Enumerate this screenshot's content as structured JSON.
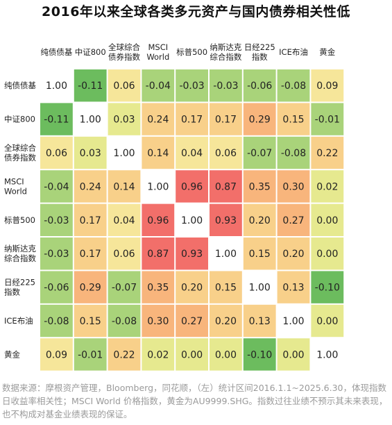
{
  "title": "2016年以来全球各类多元资产与国内债券相关性低",
  "footnote": "数据来源：摩根资产管理，Bloomberg，同花顺，（左）统计区间2016.1.1~2025.6.30，体现指数日收益率相关性；MSCI World 价格指数，黄金为AU9999.SHG。指数过往业绩不预示其未来表现，也不构成对基金业绩表现的保证。",
  "colors": {
    "strong_negative": "#6cbc5e",
    "weak_negative": "#a9d37a",
    "near_zero": "#e6e98f",
    "low_positive": "#f6e69a",
    "moderate_positive": "#f8d08a",
    "medium_positive": "#f8b57c",
    "high_positive": "#f26f6a",
    "diagonal": "#ffffff"
  },
  "chart_data": {
    "type": "heatmap",
    "title": "2016年以来全球各类多元资产与国内债券相关性低",
    "column_labels": [
      [
        "纯债债基"
      ],
      [
        "中证800"
      ],
      [
        "全球综合",
        "债券指数"
      ],
      [
        "MSCI",
        "World"
      ],
      [
        "标普500"
      ],
      [
        "纳斯达克",
        "综合指数"
      ],
      [
        "日经225",
        "指数"
      ],
      [
        "ICE布油"
      ],
      [
        "黄金"
      ]
    ],
    "row_labels": [
      [
        "纯债债基"
      ],
      [
        "中证800"
      ],
      [
        "全球综合",
        "债券指数"
      ],
      [
        "MSCI",
        "World"
      ],
      [
        "标普500"
      ],
      [
        "纳斯达克",
        "综合指数"
      ],
      [
        "日经225",
        "指数"
      ],
      [
        "ICE布油"
      ],
      [
        "黄金"
      ]
    ],
    "values": [
      [
        1.0,
        -0.11,
        0.06,
        -0.04,
        -0.03,
        -0.03,
        -0.06,
        -0.08,
        0.09
      ],
      [
        -0.11,
        1.0,
        0.03,
        0.24,
        0.17,
        0.17,
        0.29,
        0.15,
        -0.01
      ],
      [
        0.06,
        0.03,
        1.0,
        0.14,
        0.04,
        0.06,
        -0.07,
        -0.08,
        0.22
      ],
      [
        -0.04,
        0.24,
        0.14,
        1.0,
        0.96,
        0.87,
        0.35,
        0.3,
        0.02
      ],
      [
        -0.03,
        0.17,
        0.04,
        0.96,
        1.0,
        0.93,
        0.2,
        0.27,
        0.0
      ],
      [
        -0.03,
        0.17,
        0.06,
        0.87,
        0.93,
        1.0,
        0.15,
        0.2,
        0.0
      ],
      [
        -0.06,
        0.29,
        -0.07,
        0.35,
        0.2,
        0.15,
        1.0,
        0.13,
        -0.1
      ],
      [
        -0.08,
        0.15,
        -0.08,
        0.3,
        0.27,
        0.2,
        0.13,
        1.0,
        0.0
      ],
      [
        0.09,
        -0.01,
        0.22,
        0.02,
        0.0,
        0.0,
        -0.1,
        0.0,
        1.0
      ]
    ],
    "value_format": "2 decimals"
  }
}
